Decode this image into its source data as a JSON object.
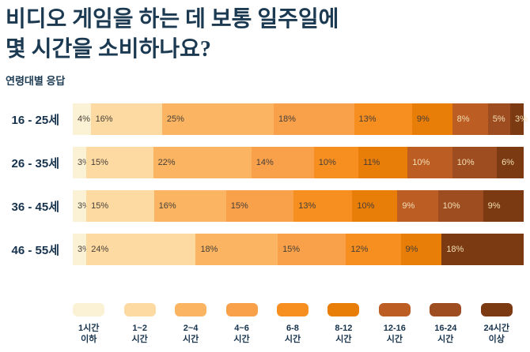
{
  "header": {
    "title": "비디오 게임을 하는 데 보통 일주일에\n몇 시간을 소비하나요?",
    "subtitle": "연령대별 응답"
  },
  "colors": {
    "title_text": "#1B3A52",
    "row_label_text": "#16324C",
    "value_label_dark": "#473F37",
    "value_label_light": "#F3DFB4",
    "background": "#FFFFFF"
  },
  "chart_data": {
    "type": "bar",
    "orientation": "horizontal",
    "stacked": true,
    "unit": "%",
    "title": "비디오 게임을 하는 데 보통 일주일에 몇 시간을 소비하나요?",
    "subtitle": "연령대별 응답",
    "legend_position": "bottom",
    "categories": [
      {
        "label": "1시간\n이하",
        "color": "#FBF1D4",
        "value_text": "dark"
      },
      {
        "label": "1~2\n시간",
        "color": "#FCDAA2",
        "value_text": "dark"
      },
      {
        "label": "2~4\n시간",
        "color": "#FAB462",
        "value_text": "dark"
      },
      {
        "label": "4~6\n시간",
        "color": "#F9A04A",
        "value_text": "dark"
      },
      {
        "label": "6-8\n시간",
        "color": "#F78E20",
        "value_text": "dark"
      },
      {
        "label": "8-12\n시간",
        "color": "#E87D08",
        "value_text": "dark"
      },
      {
        "label": "12-16\n시간",
        "color": "#BC5D24",
        "value_text": "light"
      },
      {
        "label": "16-24\n시간",
        "color": "#9E4D20",
        "value_text": "light"
      },
      {
        "label": "24시간\n이상",
        "color": "#7B3A11",
        "value_text": "light"
      }
    ],
    "rows": [
      {
        "label": "16 - 25세",
        "values": [
          4,
          16,
          25,
          18,
          13,
          9,
          8,
          5,
          3
        ]
      },
      {
        "label": "26 - 35세",
        "values": [
          3,
          15,
          22,
          14,
          10,
          11,
          10,
          10,
          6
        ]
      },
      {
        "label": "36 - 45세",
        "values": [
          3,
          15,
          16,
          15,
          13,
          10,
          9,
          10,
          9
        ]
      },
      {
        "label": "46 - 55세",
        "values": [
          3,
          24,
          18,
          15,
          12,
          9,
          0,
          0,
          18
        ]
      }
    ]
  }
}
